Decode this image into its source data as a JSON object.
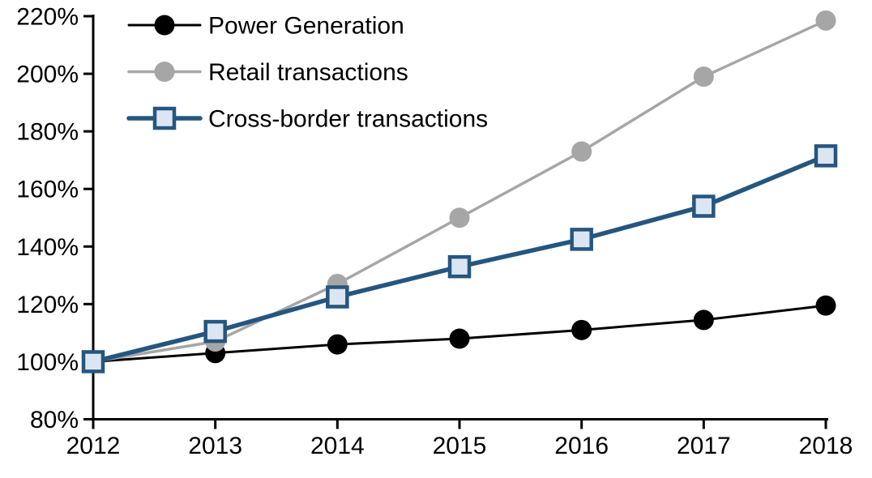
{
  "chart_data": {
    "type": "line",
    "title": "",
    "xlabel": "",
    "ylabel": "",
    "x": [
      "2012",
      "2013",
      "2014",
      "2015",
      "2016",
      "2017",
      "2018"
    ],
    "series": [
      {
        "name": "Power Generation",
        "line_color": "#000000",
        "line_width": 3,
        "marker": "circle",
        "marker_fill": "#000000",
        "values": [
          100,
          103,
          106,
          108,
          111,
          114.5,
          119.5
        ]
      },
      {
        "name": "Retail transactions",
        "line_color": "#A6A6A6",
        "line_width": 3.5,
        "marker": "circle",
        "marker_fill": "#A6A6A6",
        "values": [
          100,
          107,
          127,
          150,
          173,
          199,
          218.5
        ]
      },
      {
        "name": "Cross-border transactions",
        "line_color": "#25567F",
        "line_width": 5.5,
        "marker": "square",
        "marker_fill": "#DCE6F2",
        "marker_border": "#25567F",
        "values": [
          100,
          110.5,
          122.5,
          133,
          142.5,
          154,
          171.5
        ]
      }
    ],
    "ylim": [
      80,
      220
    ],
    "ytick_step": 20,
    "ytick_labels": [
      "80%",
      "100%",
      "120%",
      "140%",
      "160%",
      "180%",
      "200%",
      "220%"
    ],
    "xtick_labels": [
      "2012",
      "2013",
      "2014",
      "2015",
      "2016",
      "2017",
      "2018"
    ],
    "grid": false,
    "legend_position": "top-left",
    "axis_color": "#000000",
    "text_color": "#000000",
    "background_color": "#FFFFFF"
  }
}
